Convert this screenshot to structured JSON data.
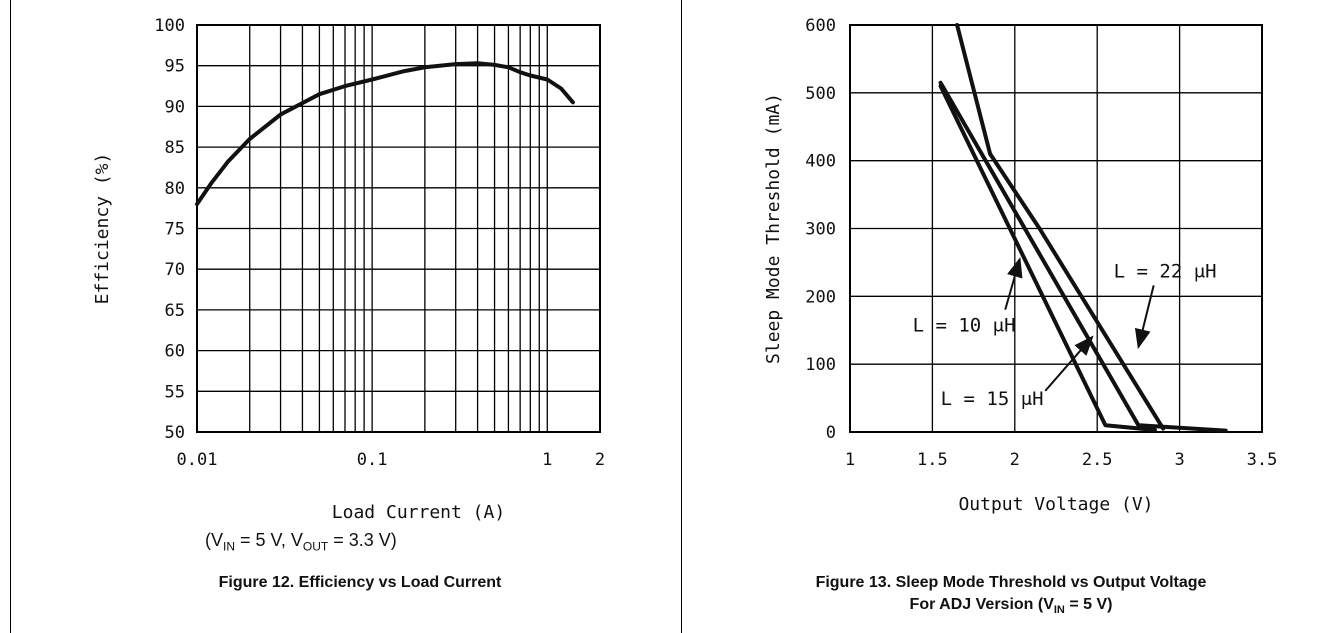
{
  "chart_data": [
    {
      "type": "line",
      "title": "",
      "xlabel": "Load Current (A)",
      "ylabel": "Efficiency (%)",
      "xscale": "log",
      "xlim": [
        0.01,
        2
      ],
      "ylim": [
        50,
        100
      ],
      "x_ticks": [
        0.01,
        0.1,
        1,
        2
      ],
      "x_tick_labels": [
        "0.01",
        "0.1",
        "1",
        "2"
      ],
      "y_ticks": [
        50,
        55,
        60,
        65,
        70,
        75,
        80,
        85,
        90,
        95,
        100
      ],
      "y_tick_labels": [
        "50",
        "55",
        "60",
        "65",
        "70",
        "75",
        "80",
        "85",
        "90",
        "95",
        "100"
      ],
      "grid": true,
      "series": [
        {
          "name": "",
          "x": [
            0.01,
            0.012,
            0.015,
            0.02,
            0.03,
            0.05,
            0.07,
            0.1,
            0.15,
            0.2,
            0.3,
            0.4,
            0.5,
            0.6,
            0.7,
            0.8,
            1.0,
            1.2,
            1.4
          ],
          "y": [
            78,
            80.5,
            83.2,
            86,
            89,
            91.5,
            92.5,
            93.3,
            94.3,
            94.8,
            95.2,
            95.3,
            95.1,
            94.8,
            94.2,
            93.8,
            93.3,
            92.2,
            90.5
          ]
        }
      ]
    },
    {
      "type": "line",
      "title": "",
      "xlabel": "Output Voltage (V)",
      "ylabel": "Sleep Mode Threshold (mA)",
      "xlim": [
        1,
        3.5
      ],
      "ylim": [
        0,
        600
      ],
      "x_ticks": [
        1,
        1.5,
        2,
        2.5,
        3,
        3.5
      ],
      "x_tick_labels": [
        "1",
        "1.5",
        "2",
        "2.5",
        "3",
        "3.5"
      ],
      "y_ticks": [
        0,
        100,
        200,
        300,
        400,
        500,
        600
      ],
      "y_tick_labels": [
        "0",
        "100",
        "200",
        "300",
        "400",
        "500",
        "600"
      ],
      "grid": true,
      "series": [
        {
          "name": "L = 10 μH",
          "x": [
            1.55,
            2.55,
            2.85
          ],
          "y": [
            510,
            10,
            3
          ]
        },
        {
          "name": "L = 15 μH",
          "x": [
            1.55,
            2.75,
            3.28
          ],
          "y": [
            515,
            10,
            2
          ]
        },
        {
          "name": "L = 22 μH",
          "x": [
            1.65,
            1.85,
            2.15,
            2.9
          ],
          "y": [
            600,
            410,
            300,
            5
          ]
        }
      ],
      "annotations": [
        {
          "text": "L = 10 μH",
          "x": 1.38,
          "y": 148,
          "arrow_to": [
            2.03,
            255
          ]
        },
        {
          "text": "L = 15 μH",
          "x": 1.55,
          "y": 40,
          "arrow_to": [
            2.47,
            140
          ]
        },
        {
          "text": "L = 22 μH",
          "x": 2.6,
          "y": 228,
          "arrow_to": [
            2.75,
            125
          ]
        }
      ]
    }
  ],
  "left": {
    "condition": {
      "v1": "V",
      "s1": "IN",
      "m1": " = 5 V, V",
      "s2": "OUT",
      "m2": " = 3.3 V)",
      "open": "("
    },
    "caption": "Figure 12. Efficiency vs Load Current"
  },
  "right": {
    "caption_line1": "Figure 13. Sleep Mode Threshold vs Output Voltage",
    "caption_line2_a": "For ADJ Version (V",
    "caption_line2_sub": "IN",
    "caption_line2_b": " = 5 V)"
  }
}
